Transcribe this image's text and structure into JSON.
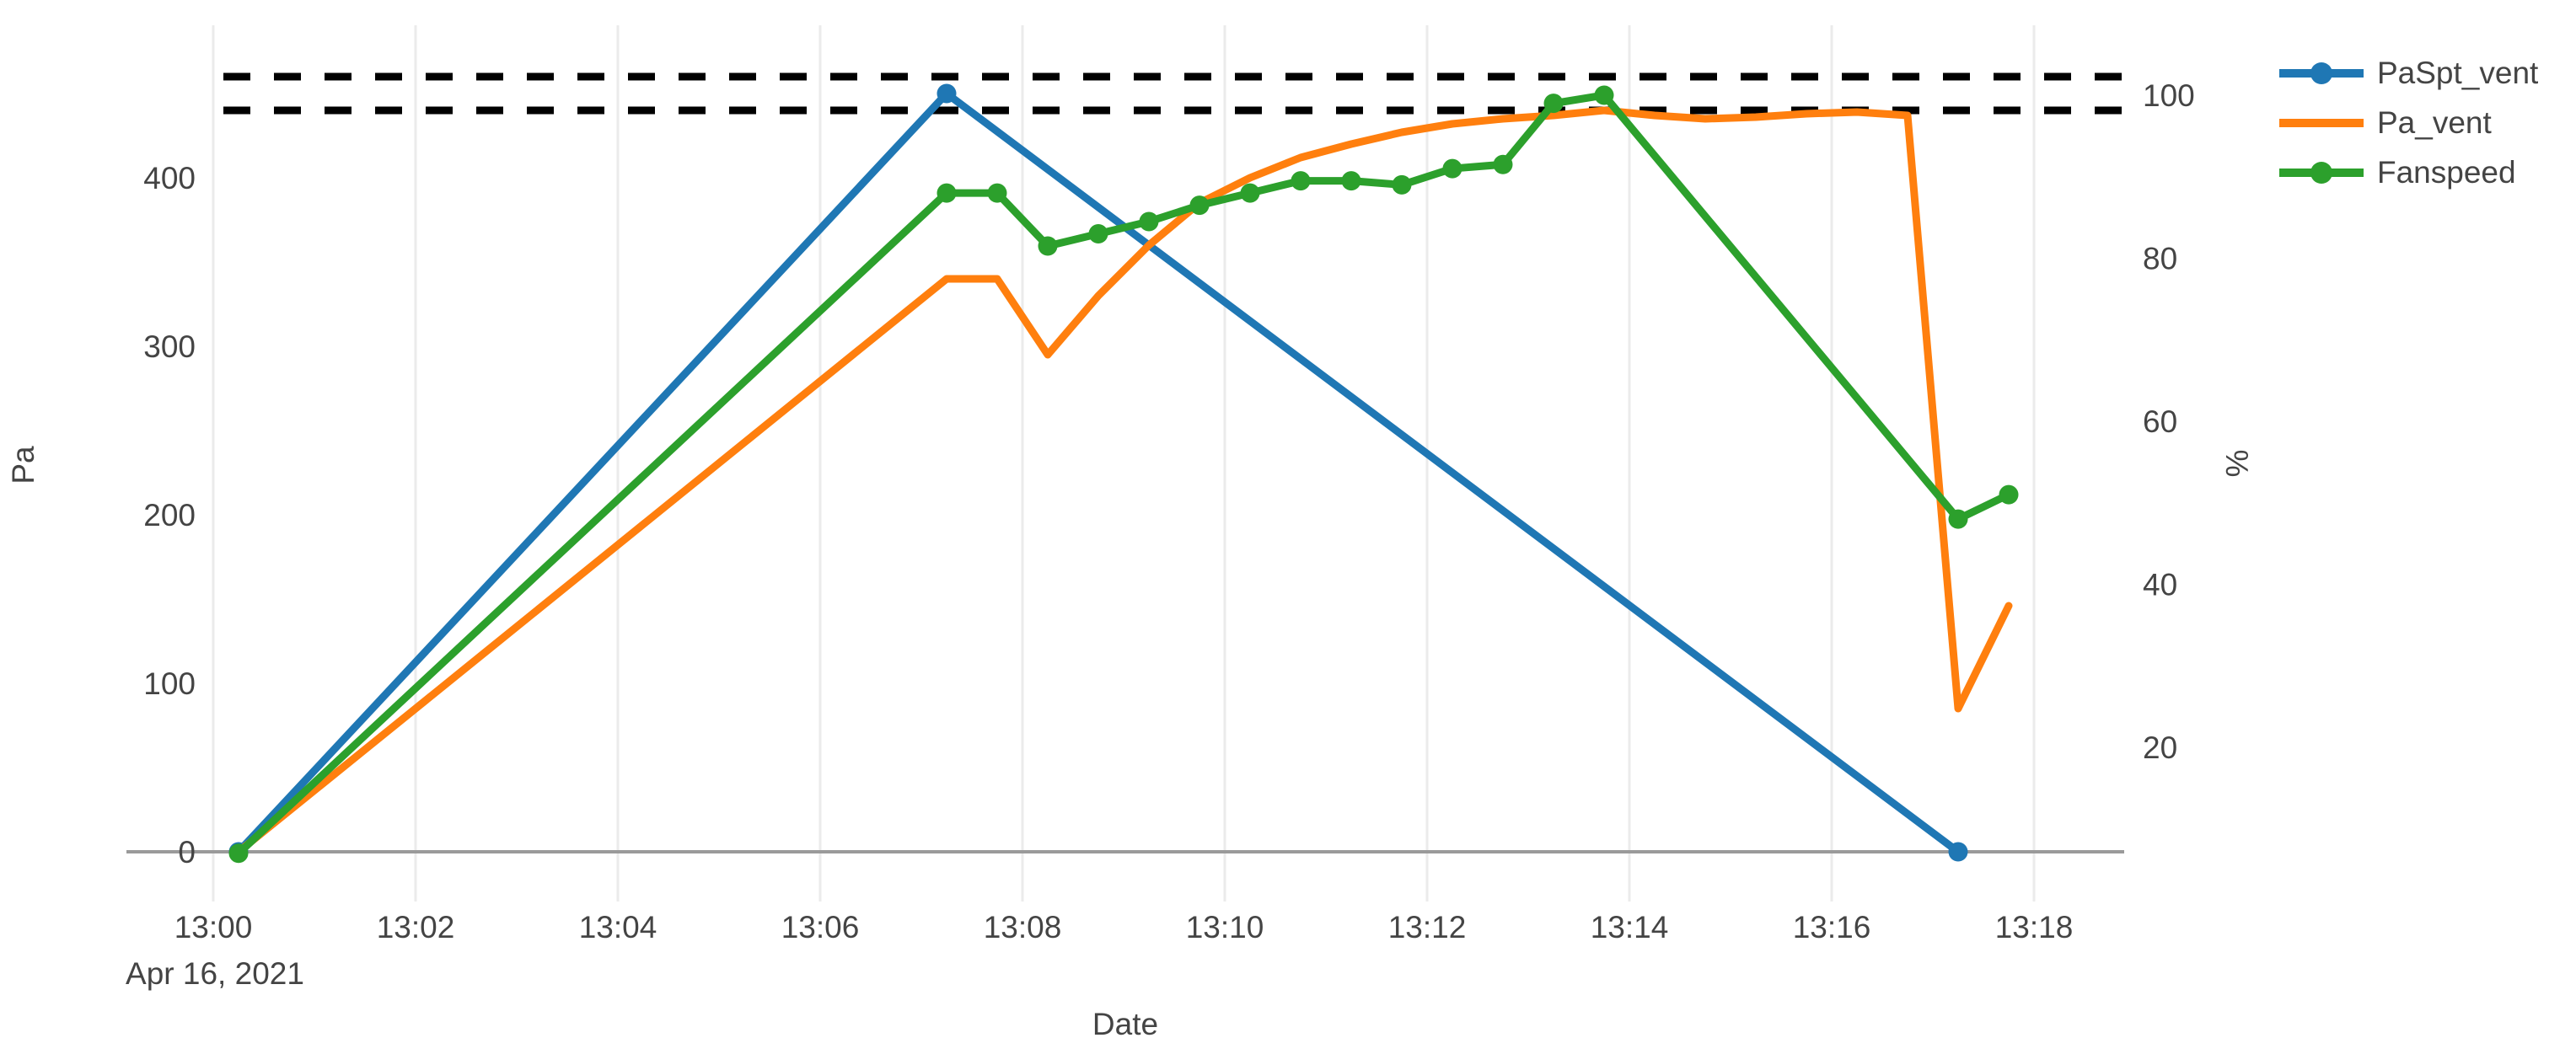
{
  "chart_data": {
    "type": "line",
    "title": "",
    "xlabel": "Date",
    "x_context_label": "Apr 16, 2021",
    "ylabel_left": "Pa",
    "ylabel_right": "%",
    "x_tick_labels": [
      "13:00",
      "13:02",
      "13:04",
      "13:06",
      "13:08",
      "13:10",
      "13:12",
      "13:14",
      "13:16",
      "13:18"
    ],
    "x_tick_seconds": [
      0,
      120,
      240,
      360,
      480,
      600,
      720,
      840,
      960,
      1080
    ],
    "xlim_seconds": [
      -52,
      1134
    ],
    "ylim_left": [
      -30,
      490
    ],
    "left_ticks": [
      0,
      100,
      200,
      300,
      400
    ],
    "ylim_right": [
      1.1,
      108.6
    ],
    "right_ticks": [
      20,
      40,
      60,
      80,
      100
    ],
    "grid": "on",
    "legend_position": "top-right",
    "background_color": "#ffffff",
    "gridline_color": "#ebebeb",
    "zeroline_color": "#9a9a9a",
    "tick_color": "#444444",
    "reference_lines": [
      {
        "name": "upper-limit",
        "axis": "left",
        "value": 460,
        "style": "dashed",
        "color": "#000000"
      },
      {
        "name": "lower-limit",
        "axis": "left",
        "value": 440,
        "style": "dashed",
        "color": "#000000"
      }
    ],
    "series": [
      {
        "name": "PaSpt_vent",
        "color": "#1f77b4",
        "axis": "left",
        "mode": "lines+markers",
        "points": [
          [
            "13:00:15",
            0
          ],
          [
            "13:07:15",
            450
          ],
          [
            "13:17:15",
            0
          ]
        ]
      },
      {
        "name": "Pa_vent",
        "color": "#ff7f0e",
        "axis": "left",
        "mode": "lines",
        "points": [
          [
            "13:00:15",
            0
          ],
          [
            "13:07:15",
            340
          ],
          [
            "13:07:45",
            340
          ],
          [
            "13:08:15",
            295
          ],
          [
            "13:08:45",
            330
          ],
          [
            "13:09:15",
            360
          ],
          [
            "13:09:45",
            385
          ],
          [
            "13:10:15",
            400
          ],
          [
            "13:10:45",
            412
          ],
          [
            "13:11:15",
            420
          ],
          [
            "13:11:45",
            427
          ],
          [
            "13:12:15",
            432
          ],
          [
            "13:12:45",
            435
          ],
          [
            "13:13:15",
            437
          ],
          [
            "13:13:45",
            440
          ],
          [
            "13:14:15",
            437
          ],
          [
            "13:14:45",
            435
          ],
          [
            "13:15:15",
            436
          ],
          [
            "13:15:45",
            438
          ],
          [
            "13:16:15",
            439
          ],
          [
            "13:16:45",
            437
          ],
          [
            "13:17:15",
            85
          ],
          [
            "13:17:45",
            146
          ]
        ]
      },
      {
        "name": "Fanspeed",
        "color": "#2ca02c",
        "axis": "right",
        "mode": "lines+markers",
        "points": [
          [
            "13:00:15",
            7
          ],
          [
            "13:07:15",
            88
          ],
          [
            "13:07:45",
            88
          ],
          [
            "13:08:15",
            81.5
          ],
          [
            "13:08:45",
            83
          ],
          [
            "13:09:15",
            84.5
          ],
          [
            "13:09:45",
            86.5
          ],
          [
            "13:10:15",
            88
          ],
          [
            "13:10:45",
            89.5
          ],
          [
            "13:11:15",
            89.5
          ],
          [
            "13:11:45",
            89
          ],
          [
            "13:12:15",
            91
          ],
          [
            "13:12:45",
            91.5
          ],
          [
            "13:13:15",
            99
          ],
          [
            "13:13:45",
            100
          ],
          [
            "13:17:15",
            48
          ],
          [
            "13:17:45",
            51
          ]
        ]
      }
    ]
  }
}
